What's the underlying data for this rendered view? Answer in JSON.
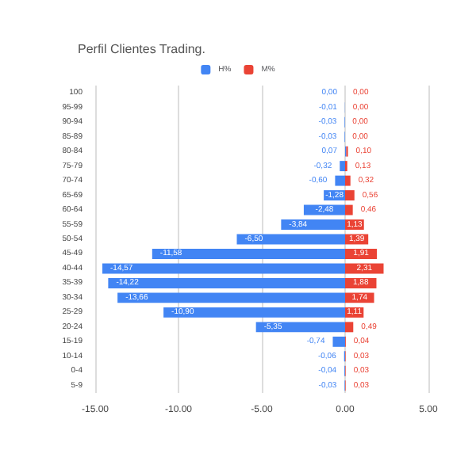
{
  "chart_data": {
    "type": "bar",
    "orientation": "horizontal",
    "stacked": true,
    "title": "Perfil Clientes Trading.",
    "categories": [
      "100",
      "95-99",
      "90-94",
      "85-89",
      "80-84",
      "75-79",
      "70-74",
      "65-69",
      "60-64",
      "55-59",
      "50-54",
      "45-49",
      "40-44",
      "35-39",
      "30-34",
      "25-29",
      "20-24",
      "15-19",
      "10-14",
      "0-4",
      "5-9"
    ],
    "series": [
      {
        "name": "H%",
        "color": "#4285f4",
        "values": [
          0.0,
          -0.01,
          -0.03,
          -0.03,
          0.07,
          -0.32,
          -0.6,
          -1.28,
          -2.48,
          -3.84,
          -6.5,
          -11.58,
          -14.57,
          -14.22,
          -13.66,
          -10.9,
          -5.35,
          -0.74,
          -0.06,
          -0.04,
          -0.03
        ],
        "value_labels": [
          "0,00",
          "-0,01",
          "-0,03",
          "-0,03",
          "0,07",
          "-0,32",
          "-0,60",
          "-1,28",
          "-2,48",
          "-3,84",
          "-6,50",
          "-11,58",
          "-14,57",
          "-14,22",
          "-13,66",
          "-10,90",
          "-5,35",
          "-0,74",
          "-0,06",
          "-0,04",
          "-0,03"
        ]
      },
      {
        "name": "M%",
        "color": "#ea4335",
        "values": [
          0.0,
          0.0,
          0.0,
          0.0,
          0.1,
          0.13,
          0.32,
          0.56,
          0.46,
          1.13,
          1.39,
          1.91,
          2.31,
          1.88,
          1.74,
          1.11,
          0.49,
          0.04,
          0.03,
          0.03,
          0.03
        ],
        "value_labels": [
          "0,00",
          "0,00",
          "0,00",
          "0,00",
          "0,10",
          "0,13",
          "0,32",
          "0,56",
          "0,46",
          "1,13",
          "1,39",
          "1,91",
          "2,31",
          "1,88",
          "1,74",
          "1,11",
          "0,49",
          "0,04",
          "0,03",
          "0,03",
          "0,03"
        ]
      }
    ],
    "xlim": [
      -15,
      5
    ],
    "xticks": [
      {
        "value": -15,
        "label": "-15.00"
      },
      {
        "value": -10,
        "label": "-10.00"
      },
      {
        "value": -5,
        "label": "-5.00"
      },
      {
        "value": 0,
        "label": "0.00"
      },
      {
        "value": 5,
        "label": "5.00"
      }
    ],
    "grid": "x",
    "legend": "top"
  }
}
